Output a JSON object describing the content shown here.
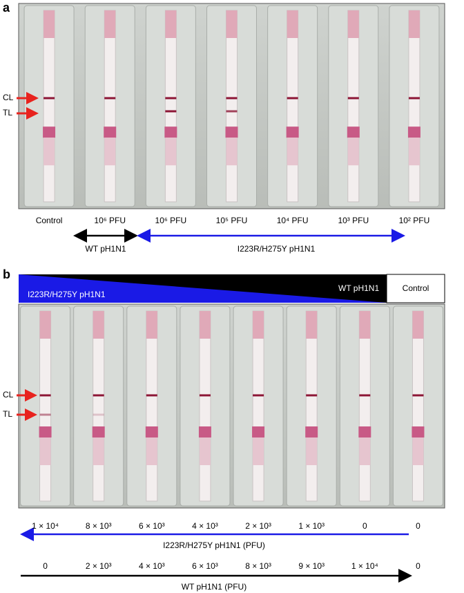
{
  "panel_a": {
    "label": "a",
    "line_labels": [
      "CL",
      "TL"
    ],
    "lanes": [
      "Control",
      "10⁶ PFU",
      "10⁶ PFU",
      "10⁵ PFU",
      "10⁴ PFU",
      "10³ PFU",
      "10² PFU"
    ],
    "groups": [
      "WT pH1N1",
      "I223R/H275Y pH1N1"
    ]
  },
  "panel_b": {
    "label": "b",
    "header": {
      "mutant": "I223R/H275Y pH1N1",
      "wt": "WT pH1N1",
      "control": "Control"
    },
    "line_labels": [
      "CL",
      "TL"
    ],
    "mutant_amounts": [
      "1 × 10⁴",
      "8 × 10³",
      "6 × 10³",
      "4 × 10³",
      "2 × 10³",
      "1 × 10³",
      "0",
      "0"
    ],
    "mutant_axis_label": "I223R/H275Y pH1N1 (PFU)",
    "wt_amounts": [
      "0",
      "2 × 10³",
      "4 × 10³",
      "6 × 10³",
      "8 × 10³",
      "9 × 10³",
      "1 × 10⁴",
      "0"
    ],
    "wt_axis_label": "WT pH1N1 (PFU)"
  }
}
